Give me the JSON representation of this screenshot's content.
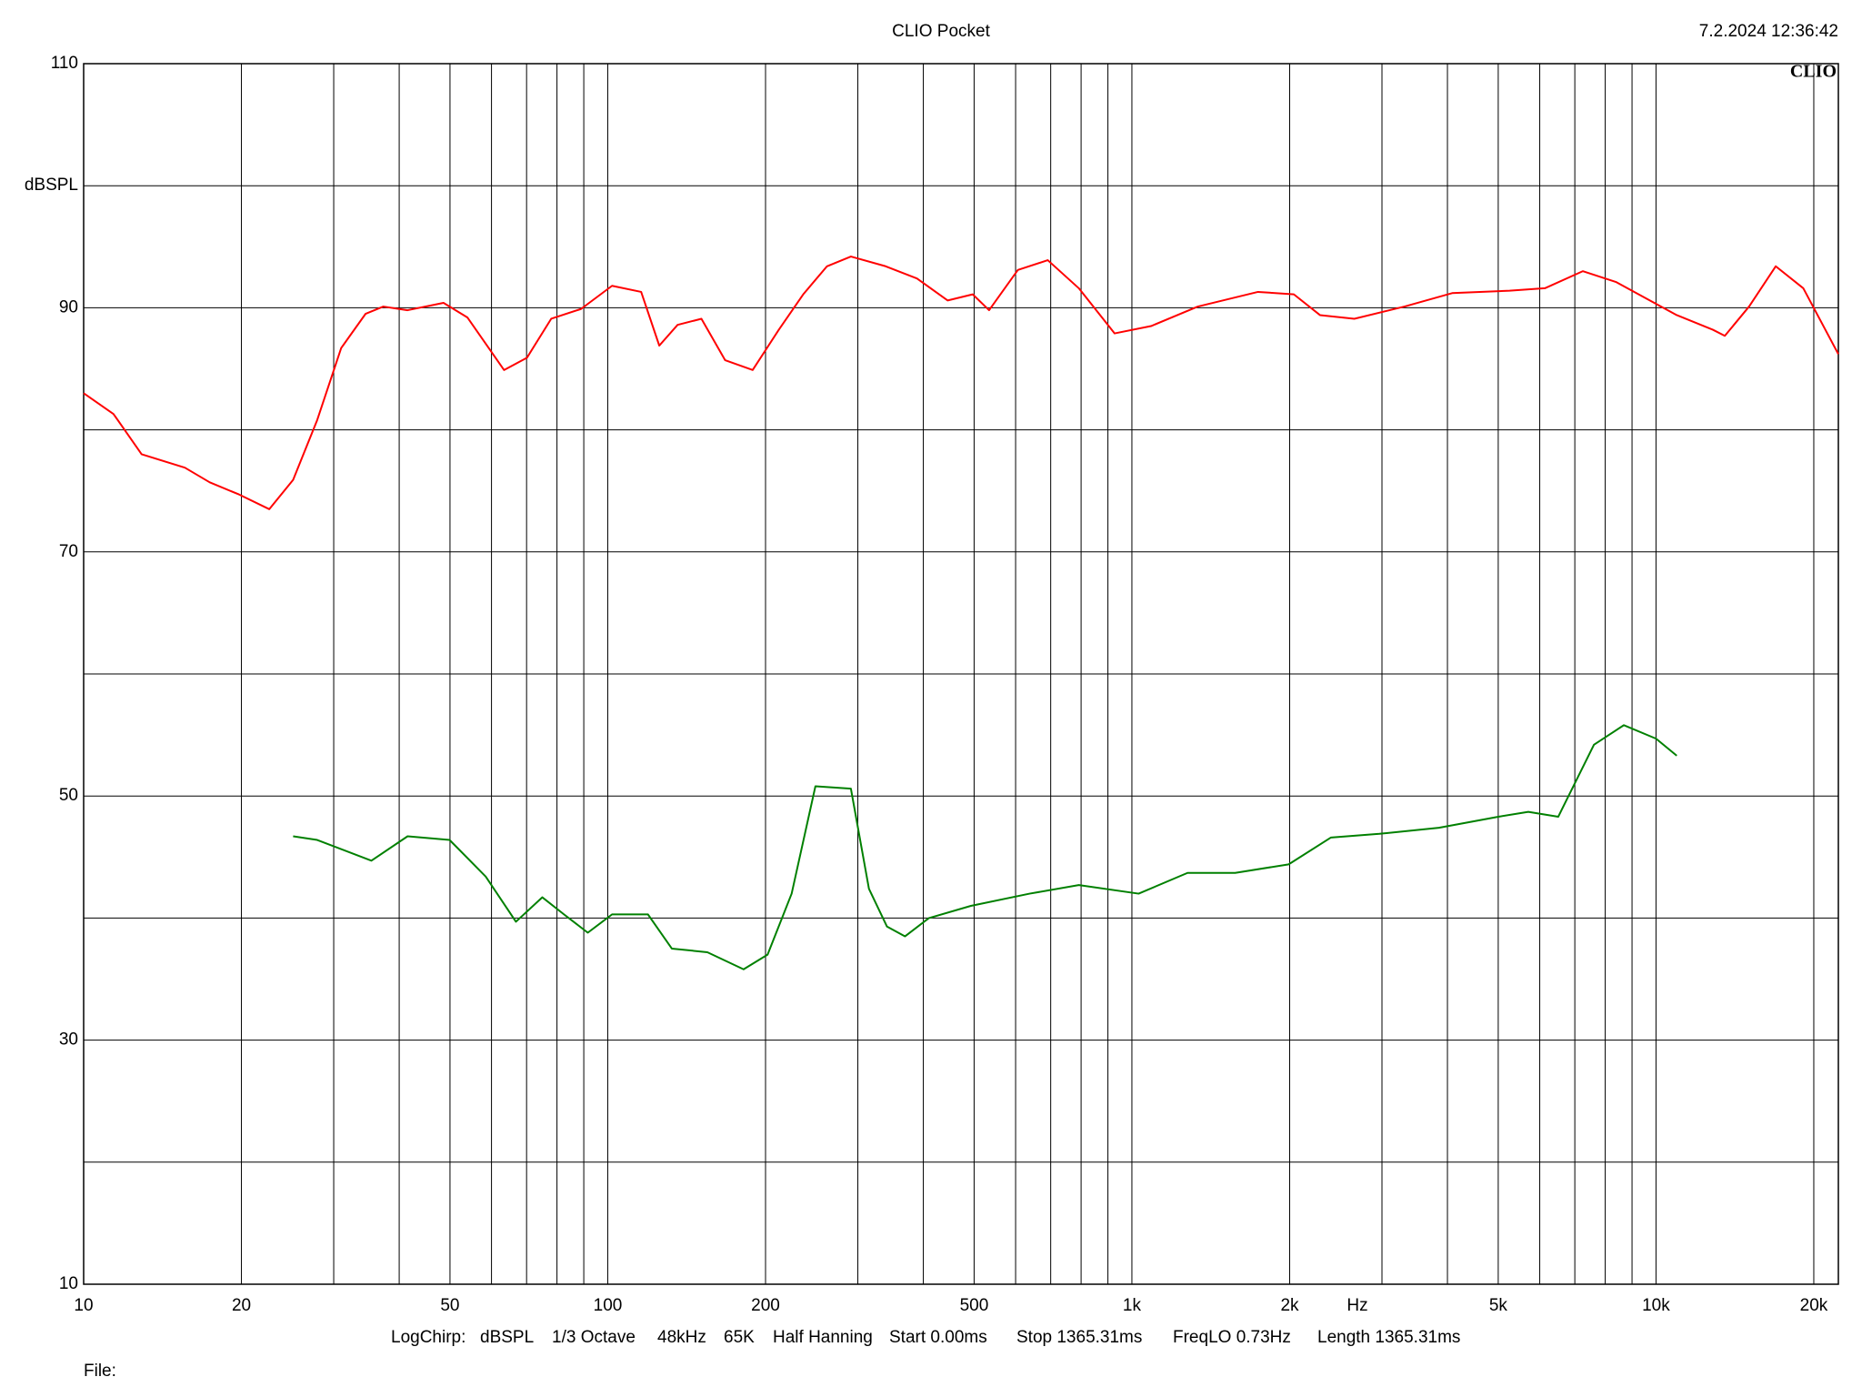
{
  "chart_data": {
    "type": "line",
    "title": "CLIO Pocket",
    "timestamp": "7.2.2024 12:36:42",
    "logo": "CLIO",
    "y_label": "dBSPL",
    "x_label": "Hz",
    "file_label": "File:",
    "settings": [
      "LogChirp:",
      "dBSPL",
      "1/3 Octave",
      "48kHz",
      "65K",
      "Half Hanning",
      "Start 0.00ms",
      "Stop 1365.31ms",
      "FreqLO 0.73Hz",
      "Length 1365.31ms"
    ],
    "xlog": true,
    "grid": true,
    "xlim": [
      10,
      22280
    ],
    "ylim": [
      10,
      110
    ],
    "xticks": [
      10,
      20,
      50,
      100,
      200,
      500,
      {
        "value": 1000,
        "label": "1k"
      },
      {
        "value": 2000,
        "label": "2k"
      },
      {
        "value": 5000,
        "label": "5k"
      },
      {
        "value": 10000,
        "label": "10k"
      },
      {
        "value": 20000,
        "label": "20k"
      }
    ],
    "xminor": [
      30,
      40,
      60,
      70,
      80,
      90,
      300,
      400,
      600,
      700,
      800,
      900,
      3000,
      4000,
      6000,
      7000,
      8000,
      9000
    ],
    "yticks": [
      10,
      30,
      50,
      70,
      90,
      110
    ],
    "yminor": [
      20,
      40,
      60,
      80,
      100
    ],
    "series": [
      {
        "color": "#ff0000",
        "x": [
          10,
          11.4,
          12.9,
          15.6,
          17.4,
          19.8,
          22.6,
          25.1,
          27.9,
          31,
          34.5,
          37.3,
          41.5,
          48.6,
          54,
          63.4,
          70.1,
          78,
          88.9,
          101.9,
          115.8,
          125.4,
          135.9,
          150.9,
          167.5,
          189,
          212,
          236,
          262,
          291,
          339,
          389,
          445,
          497,
          534,
          606,
          691,
          792,
          927,
          1088,
          1336,
          1740,
          2037,
          2285,
          2657,
          3311,
          4084,
          5255,
          6138,
          7253,
          8401,
          10954,
          12839,
          13530,
          15050,
          16920,
          19100,
          22280
        ],
        "values": [
          83.0,
          81.3,
          78.0,
          76.9,
          75.7,
          74.7,
          73.5,
          75.9,
          80.8,
          86.7,
          89.5,
          90.1,
          89.8,
          90.4,
          89.2,
          84.9,
          85.9,
          89.1,
          89.9,
          91.8,
          91.3,
          86.9,
          88.6,
          89.1,
          85.7,
          84.9,
          88.2,
          91.1,
          93.4,
          94.2,
          93.4,
          92.4,
          90.6,
          91.1,
          89.8,
          93.1,
          93.9,
          91.6,
          87.9,
          88.5,
          90.1,
          91.3,
          91.1,
          89.4,
          89.1,
          90.1,
          91.2,
          91.4,
          91.6,
          93.0,
          92.1,
          89.4,
          88.2,
          87.7,
          90.1,
          93.4,
          91.6,
          86.2
        ]
      },
      {
        "color": "#008000",
        "x": [
          25.1,
          27.9,
          35.4,
          41.5,
          49.9,
          58.5,
          66.8,
          75,
          82.5,
          91.6,
          101.9,
          119.3,
          132.5,
          154.9,
          181.6,
          201.8,
          224.3,
          249,
          291,
          315,
          341,
          369,
          410,
          493,
          638,
          792,
          1030,
          1277,
          1574,
          1991,
          2398,
          2967,
          3853,
          5004,
          5706,
          6508,
          7614,
          8680,
          10000,
          10954
        ],
        "values": [
          46.7,
          46.4,
          44.7,
          46.7,
          46.4,
          43.4,
          39.7,
          41.7,
          40.3,
          38.8,
          40.3,
          40.3,
          37.5,
          37.2,
          35.8,
          37.0,
          42.0,
          50.8,
          50.6,
          42.4,
          39.3,
          38.5,
          40.0,
          41.0,
          42.0,
          42.7,
          42.0,
          43.7,
          43.7,
          44.4,
          46.6,
          46.9,
          47.4,
          48.3,
          48.7,
          48.3,
          54.2,
          55.8,
          54.7,
          53.3
        ]
      }
    ]
  }
}
